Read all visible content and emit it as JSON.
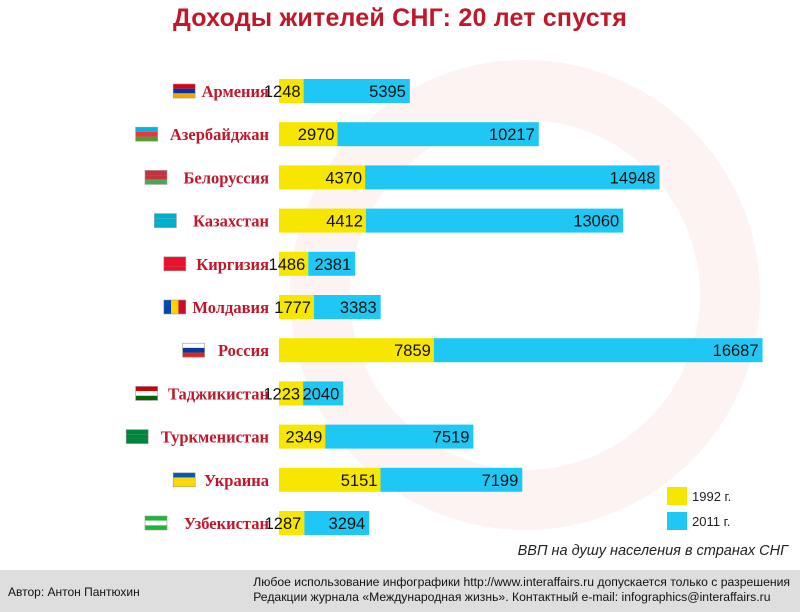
{
  "title": "Доходы жителей СНГ: 20 лет спустя",
  "caption": "ВВП на душу населения в странах СНГ",
  "footer": {
    "author": "Автор: Антон Пантюхин",
    "notice_line1": "Любое использование инфографики http://www.interaffairs.ru допускается только с разрешения",
    "notice_line2": "Редакции журнала «Международная жизнь». Контактный e-mail: infographics@interaffairs.ru"
  },
  "colors": {
    "series_1992": "#f7e600",
    "series_2011": "#1fc8f4",
    "labels": "#c0172a"
  },
  "chart_data": {
    "type": "bar",
    "orientation": "horizontal",
    "stacked": true,
    "categories": [
      "Армения",
      "Азербайджан",
      "Белоруссия",
      "Казахстан",
      "Киргизия",
      "Молдавия",
      "Россия",
      "Таджикистан",
      "Туркменистан",
      "Украина",
      "Узбекистан"
    ],
    "series": [
      {
        "name": "1992 г.",
        "color": "#f7e600",
        "values": [
          1248,
          2970,
          4370,
          4412,
          1486,
          1777,
          7859,
          1223,
          2349,
          5151,
          1287
        ]
      },
      {
        "name": "2011 г.",
        "color": "#1fc8f4",
        "values": [
          5395,
          10217,
          14948,
          13060,
          2381,
          3383,
          16687,
          2040,
          7519,
          7199,
          3294
        ]
      }
    ],
    "flags": [
      [
        "#d90012",
        "#0033a0",
        "#f2a800"
      ],
      [
        "#00b5e2",
        "#ef3340",
        "#509e2f"
      ],
      [
        "#c8313e",
        "#c8313e",
        "#4aa657"
      ],
      [
        "#00afca",
        "#00afca",
        "#00afca"
      ],
      [
        "#e8112d",
        "#e8112d",
        "#e8112d"
      ],
      [
        "#0046ae",
        "#ffd200",
        "#cc092f"
      ],
      [
        "#ffffff",
        "#0039a6",
        "#d52b1e"
      ],
      [
        "#cc0000",
        "#ffffff",
        "#006600"
      ],
      [
        "#00843d",
        "#00843d",
        "#00843d"
      ],
      [
        "#0057b7",
        "#ffd700",
        "#ffd700"
      ],
      [
        "#1eb53a",
        "#ffffff",
        "#1eb53a"
      ]
    ],
    "legend_position": "bottom-right",
    "grid": false
  }
}
